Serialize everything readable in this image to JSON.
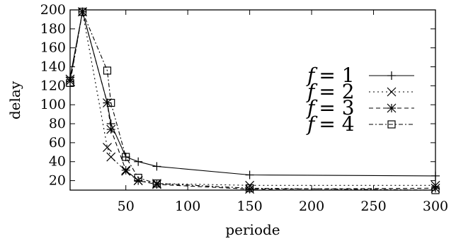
{
  "chart_data": {
    "type": "line",
    "xlabel": "periode",
    "ylabel": "delay",
    "xlim": [
      5,
      300
    ],
    "ylim": [
      10,
      200
    ],
    "xticks": [
      50,
      100,
      150,
      200,
      250,
      300
    ],
    "yticks": [
      20,
      40,
      60,
      80,
      100,
      120,
      140,
      160,
      180,
      200
    ],
    "grid": false,
    "legend_position": "right",
    "series": [
      {
        "name": "f = 1",
        "label_lhs": "f",
        "label_rhs": "= 1",
        "marker": "plus",
        "dash": "solid",
        "points": [
          [
            5,
            129
          ],
          [
            15,
            198
          ],
          [
            35,
            102
          ],
          [
            38,
            80
          ],
          [
            50,
            45
          ],
          [
            60,
            40
          ],
          [
            75,
            35
          ],
          [
            150,
            26
          ],
          [
            300,
            25
          ]
        ]
      },
      {
        "name": "f = 2",
        "label_lhs": "f",
        "label_rhs": "= 2",
        "marker": "cross",
        "dash": "dotted",
        "points": [
          [
            5,
            127
          ],
          [
            15,
            198
          ],
          [
            35,
            55
          ],
          [
            38,
            45
          ],
          [
            50,
            30
          ],
          [
            60,
            20
          ],
          [
            75,
            17
          ],
          [
            150,
            15
          ],
          [
            300,
            15
          ]
        ]
      },
      {
        "name": "f = 3",
        "label_lhs": "f",
        "label_rhs": "= 3",
        "marker": "asterisk",
        "dash": "dashed",
        "points": [
          [
            5,
            125
          ],
          [
            15,
            198
          ],
          [
            35,
            102
          ],
          [
            38,
            74
          ],
          [
            50,
            31
          ],
          [
            60,
            20
          ],
          [
            75,
            16
          ],
          [
            150,
            11
          ],
          [
            300,
            12
          ]
        ]
      },
      {
        "name": "f = 4",
        "label_lhs": "f",
        "label_rhs": "= 4",
        "marker": "square",
        "dash": "dashdot",
        "points": [
          [
            5,
            123
          ],
          [
            15,
            198
          ],
          [
            35,
            136
          ],
          [
            38,
            102
          ],
          [
            50,
            45
          ],
          [
            60,
            23
          ],
          [
            75,
            17
          ],
          [
            150,
            12
          ],
          [
            300,
            10
          ]
        ]
      }
    ]
  }
}
